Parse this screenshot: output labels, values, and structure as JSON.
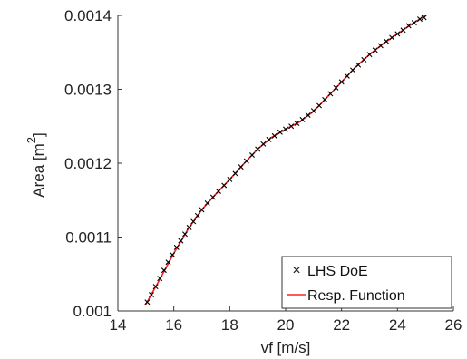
{
  "chart_data": {
    "type": "scatter",
    "title": "",
    "xlabel": "vf [m/s]",
    "ylabel_main": "Area [m",
    "ylabel_sup": "2",
    "ylabel_end": "]",
    "xlim": [
      14,
      26
    ],
    "ylim": [
      0.001,
      0.0014
    ],
    "x_ticks": [
      14,
      16,
      18,
      20,
      22,
      24,
      26
    ],
    "y_ticks": [
      0.001,
      0.0011,
      0.0012,
      0.0013,
      0.0014
    ],
    "x_tick_labels": [
      "14",
      "16",
      "18",
      "20",
      "22",
      "24",
      "26"
    ],
    "y_tick_labels": [
      "0.001",
      "0.0011",
      "0.0012",
      "0.0013",
      "0.0014"
    ],
    "grid": false,
    "legend_position": "bottom-right",
    "series": [
      {
        "name": "LHS DoE",
        "kind": "markers",
        "marker": "x",
        "color": "#000000",
        "x": [
          15.05,
          15.2,
          15.35,
          15.5,
          15.65,
          15.8,
          15.95,
          16.1,
          16.25,
          16.4,
          16.55,
          16.7,
          16.85,
          17.0,
          17.2,
          17.4,
          17.6,
          17.8,
          18.0,
          18.2,
          18.4,
          18.6,
          18.8,
          19.0,
          19.2,
          19.4,
          19.6,
          19.8,
          20.0,
          20.2,
          20.4,
          20.6,
          20.8,
          21.0,
          21.2,
          21.4,
          21.6,
          21.8,
          22.0,
          22.2,
          22.4,
          22.6,
          22.8,
          23.0,
          23.2,
          23.4,
          23.6,
          23.8,
          24.0,
          24.2,
          24.4,
          24.6,
          24.8,
          24.95
        ],
        "y": [
          0.001012,
          0.001022,
          0.001033,
          0.001044,
          0.001055,
          0.001066,
          0.001076,
          0.001086,
          0.001095,
          0.001104,
          0.001113,
          0.001121,
          0.001129,
          0.001137,
          0.001146,
          0.001154,
          0.001162,
          0.00117,
          0.001178,
          0.001186,
          0.001195,
          0.001203,
          0.001211,
          0.001219,
          0.001226,
          0.001232,
          0.001237,
          0.001242,
          0.001246,
          0.00125,
          0.001254,
          0.001259,
          0.001265,
          0.001271,
          0.001278,
          0.001286,
          0.001294,
          0.001302,
          0.00131,
          0.001318,
          0.001326,
          0.001333,
          0.00134,
          0.001347,
          0.001353,
          0.001359,
          0.001365,
          0.00137,
          0.001375,
          0.00138,
          0.001386,
          0.00139,
          0.001395,
          0.001397
        ]
      },
      {
        "name": "Resp. Function",
        "kind": "line",
        "color": "#ff2020",
        "x": [
          15.0,
          15.5,
          16.0,
          16.5,
          17.0,
          17.5,
          18.0,
          18.5,
          19.0,
          19.5,
          20.0,
          20.5,
          21.0,
          21.5,
          22.0,
          22.5,
          23.0,
          23.5,
          24.0,
          24.5,
          25.0
        ],
        "y": [
          0.001009,
          0.001043,
          0.001078,
          0.00111,
          0.001137,
          0.001158,
          0.001178,
          0.001199,
          0.001219,
          0.001235,
          0.001246,
          0.001256,
          0.00127,
          0.00129,
          0.00131,
          0.00133,
          0.001347,
          0.001362,
          0.001375,
          0.001388,
          0.0014
        ]
      }
    ]
  }
}
